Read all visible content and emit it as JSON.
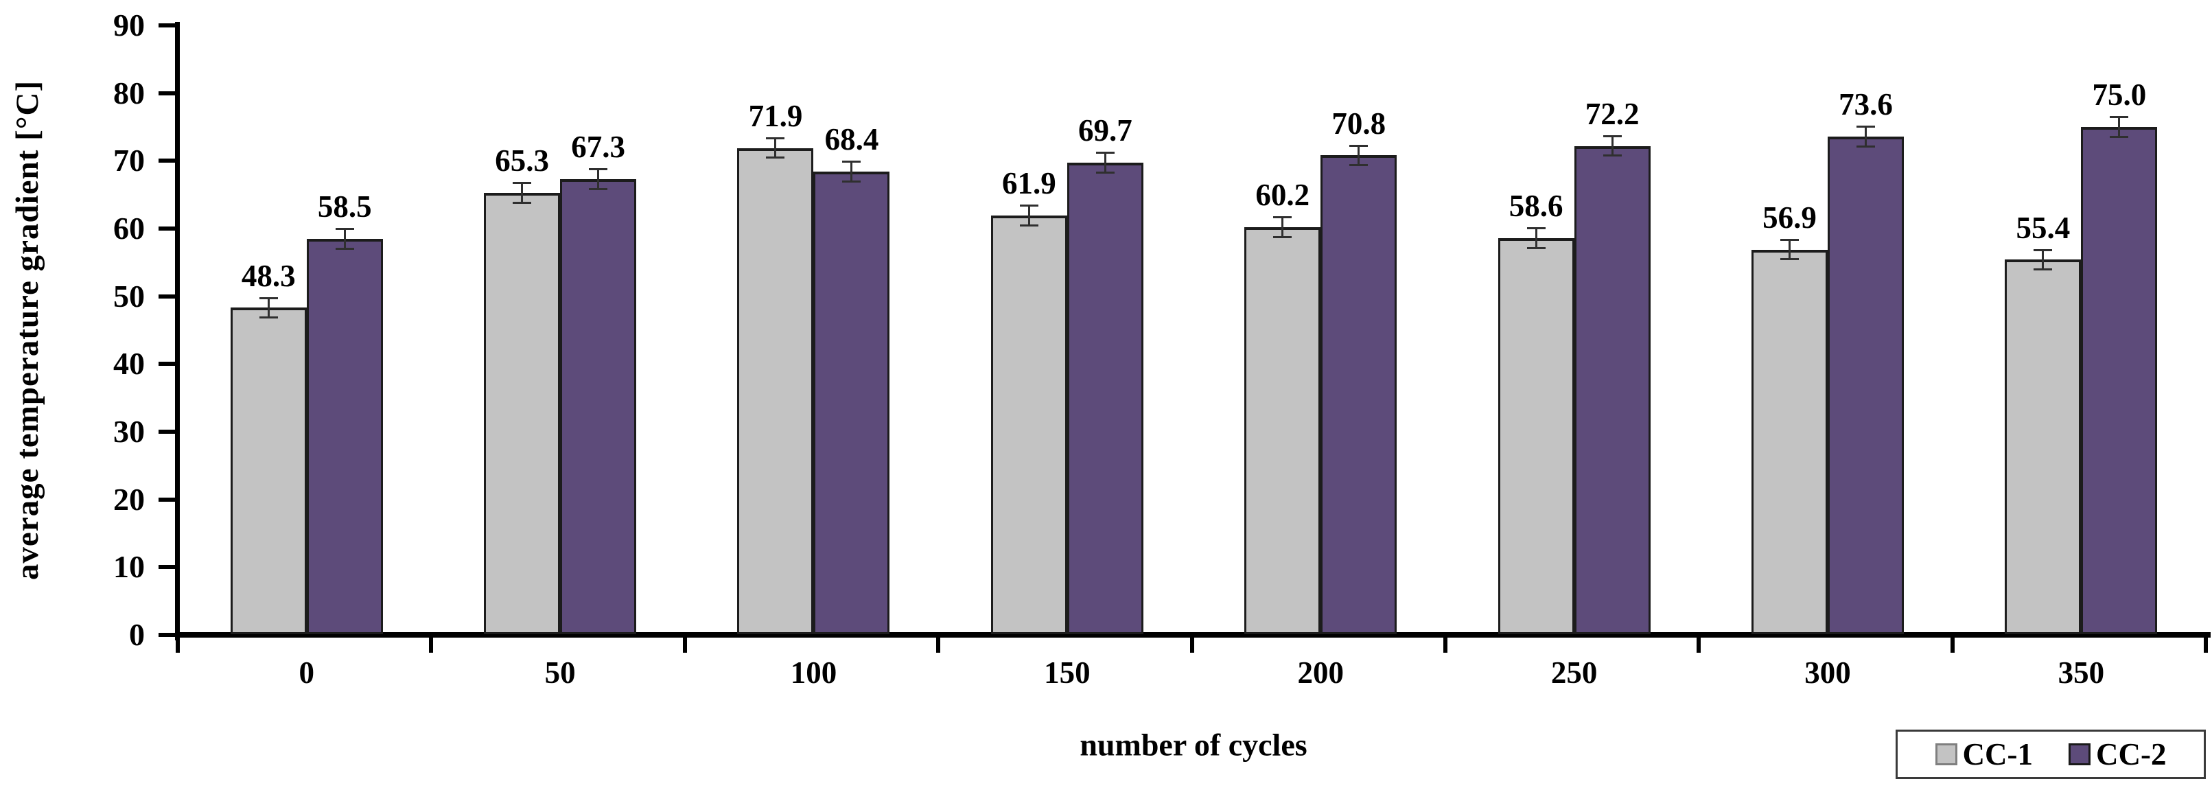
{
  "chart_data": {
    "type": "bar",
    "title": "",
    "xlabel": "number of cycles",
    "ylabel": "average temperature gradient [°C]",
    "categories": [
      "0",
      "50",
      "100",
      "150",
      "200",
      "250",
      "300",
      "350"
    ],
    "series": [
      {
        "name": "CC-1",
        "color": "#c3c3c3",
        "swatch_border": "#7f7f7f",
        "values": [
          48.3,
          65.3,
          71.9,
          61.9,
          60.2,
          58.6,
          56.9,
          55.4
        ],
        "error": 1.3
      },
      {
        "name": "CC-2",
        "color": "#5d4b7a",
        "swatch_border": "#1a1a1a",
        "values": [
          58.5,
          67.3,
          68.4,
          69.7,
          70.8,
          72.2,
          73.6,
          75.0
        ],
        "error": 1.3
      }
    ],
    "ylim": [
      0,
      90
    ],
    "ytick_step": 10,
    "grid": false,
    "value_labels": true,
    "value_label_decimals": 1,
    "legend_position": "bottom-right",
    "bar_border_color": "#1c1c1c",
    "error_bar_color": "#2f2f2f",
    "axis_color": "#000000"
  }
}
